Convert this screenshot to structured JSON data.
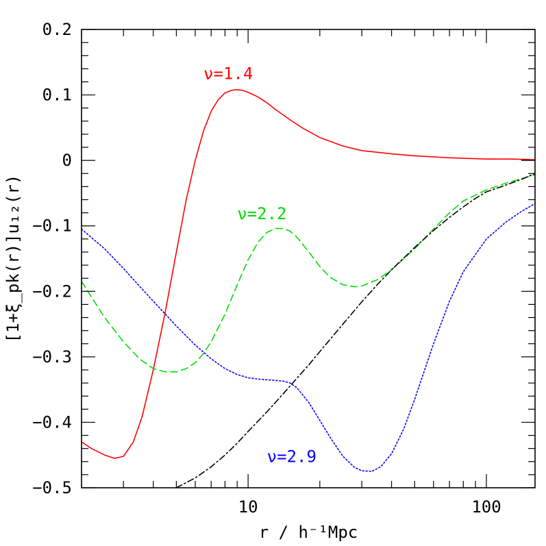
{
  "chart_data": {
    "type": "line",
    "title": "",
    "xlabel": "r / h⁻¹Mpc",
    "ylabel": "[1+ξ_pk(r)]u₁₂(r)",
    "xscale": "log",
    "xlim": [
      2.0,
      160
    ],
    "ylim": [
      -0.5,
      0.2
    ],
    "grid": false,
    "x_major_ticks": [
      {
        "value": 10,
        "label": "10"
      },
      {
        "value": 100,
        "label": "100"
      }
    ],
    "y_major_ticks": [
      {
        "value": -0.5,
        "label": "−0.5"
      },
      {
        "value": -0.4,
        "label": "−0.4"
      },
      {
        "value": -0.3,
        "label": "−0.3"
      },
      {
        "value": -0.2,
        "label": "−0.2"
      },
      {
        "value": -0.1,
        "label": "−0.1"
      },
      {
        "value": 0,
        "label": "0"
      },
      {
        "value": 0.1,
        "label": "0.1"
      },
      {
        "value": 0.2,
        "label": "0.2"
      }
    ],
    "series": [
      {
        "name": "ν=1.4",
        "color": "#ff0000",
        "style": "solid",
        "x": [
          2.0,
          2.2,
          2.5,
          2.75,
          3.0,
          3.3,
          3.6,
          4.0,
          4.5,
          5.0,
          5.5,
          6.0,
          6.5,
          7.0,
          7.5,
          8.0,
          8.5,
          9.0,
          9.5,
          10.0,
          11,
          12,
          13,
          15,
          17,
          20,
          25,
          30,
          40,
          50,
          70,
          100,
          130,
          160
        ],
        "y": [
          -0.43,
          -0.44,
          -0.45,
          -0.455,
          -0.452,
          -0.43,
          -0.39,
          -0.32,
          -0.23,
          -0.14,
          -0.06,
          0.0,
          0.045,
          0.075,
          0.093,
          0.103,
          0.107,
          0.108,
          0.107,
          0.104,
          0.097,
          0.088,
          0.078,
          0.062,
          0.049,
          0.035,
          0.022,
          0.015,
          0.01,
          0.007,
          0.004,
          0.002,
          0.002,
          0.001
        ]
      },
      {
        "name": "ν=2.2",
        "color": "#00dd00",
        "style": "dashed",
        "x": [
          2.0,
          2.5,
          3.0,
          3.5,
          4.0,
          4.5,
          5.0,
          5.5,
          6.0,
          6.5,
          7.0,
          8.0,
          9.0,
          10.0,
          11,
          12,
          13,
          14,
          15,
          16,
          18,
          20,
          22,
          25,
          28,
          30,
          35,
          40,
          50,
          60,
          70,
          80,
          100,
          120,
          140,
          160
        ],
        "y": [
          -0.185,
          -0.24,
          -0.277,
          -0.303,
          -0.318,
          -0.323,
          -0.323,
          -0.318,
          -0.309,
          -0.295,
          -0.277,
          -0.235,
          -0.19,
          -0.152,
          -0.125,
          -0.11,
          -0.104,
          -0.104,
          -0.108,
          -0.117,
          -0.14,
          -0.162,
          -0.178,
          -0.19,
          -0.193,
          -0.192,
          -0.182,
          -0.167,
          -0.135,
          -0.105,
          -0.08,
          -0.062,
          -0.045,
          -0.035,
          -0.028,
          -0.022
        ]
      },
      {
        "name": "ν=2.9",
        "color": "#0000ff",
        "style": "dotted",
        "x": [
          2.0,
          2.5,
          3.0,
          3.5,
          4.0,
          4.5,
          5.0,
          6.0,
          7.0,
          8.0,
          9.0,
          10.0,
          11,
          12,
          13,
          14,
          15,
          16,
          18,
          20,
          22,
          25,
          28,
          30,
          33,
          36,
          40,
          45,
          50,
          60,
          70,
          80,
          100,
          120,
          140,
          160
        ],
        "y": [
          -0.105,
          -0.135,
          -0.165,
          -0.192,
          -0.215,
          -0.235,
          -0.253,
          -0.282,
          -0.303,
          -0.318,
          -0.327,
          -0.332,
          -0.334,
          -0.335,
          -0.336,
          -0.337,
          -0.34,
          -0.347,
          -0.37,
          -0.397,
          -0.422,
          -0.452,
          -0.469,
          -0.474,
          -0.475,
          -0.468,
          -0.448,
          -0.41,
          -0.365,
          -0.28,
          -0.215,
          -0.17,
          -0.12,
          -0.095,
          -0.078,
          -0.066
        ]
      },
      {
        "name": "",
        "color": "#000000",
        "style": "dashdot",
        "x": [
          5.0,
          6.0,
          7.0,
          8.0,
          9.0,
          10.0,
          12,
          14,
          16,
          18,
          20,
          25,
          30,
          35,
          40,
          50,
          60,
          70,
          80,
          90,
          100,
          120,
          140,
          160
        ],
        "y": [
          -0.5,
          -0.485,
          -0.468,
          -0.45,
          -0.432,
          -0.414,
          -0.384,
          -0.357,
          -0.333,
          -0.312,
          -0.292,
          -0.25,
          -0.216,
          -0.189,
          -0.167,
          -0.133,
          -0.107,
          -0.087,
          -0.071,
          -0.058,
          -0.048,
          -0.038,
          -0.029,
          -0.02
        ]
      }
    ],
    "annotations": [
      {
        "text": "ν=1.4",
        "color": "#ff0000",
        "x": 6.5,
        "y": 0.124
      },
      {
        "text": "ν=2.2",
        "color": "#00dd00",
        "x": 9.0,
        "y": -0.09
      },
      {
        "text": "ν=2.9",
        "color": "#0000ff",
        "x": 12.0,
        "y": -0.461
      }
    ]
  }
}
